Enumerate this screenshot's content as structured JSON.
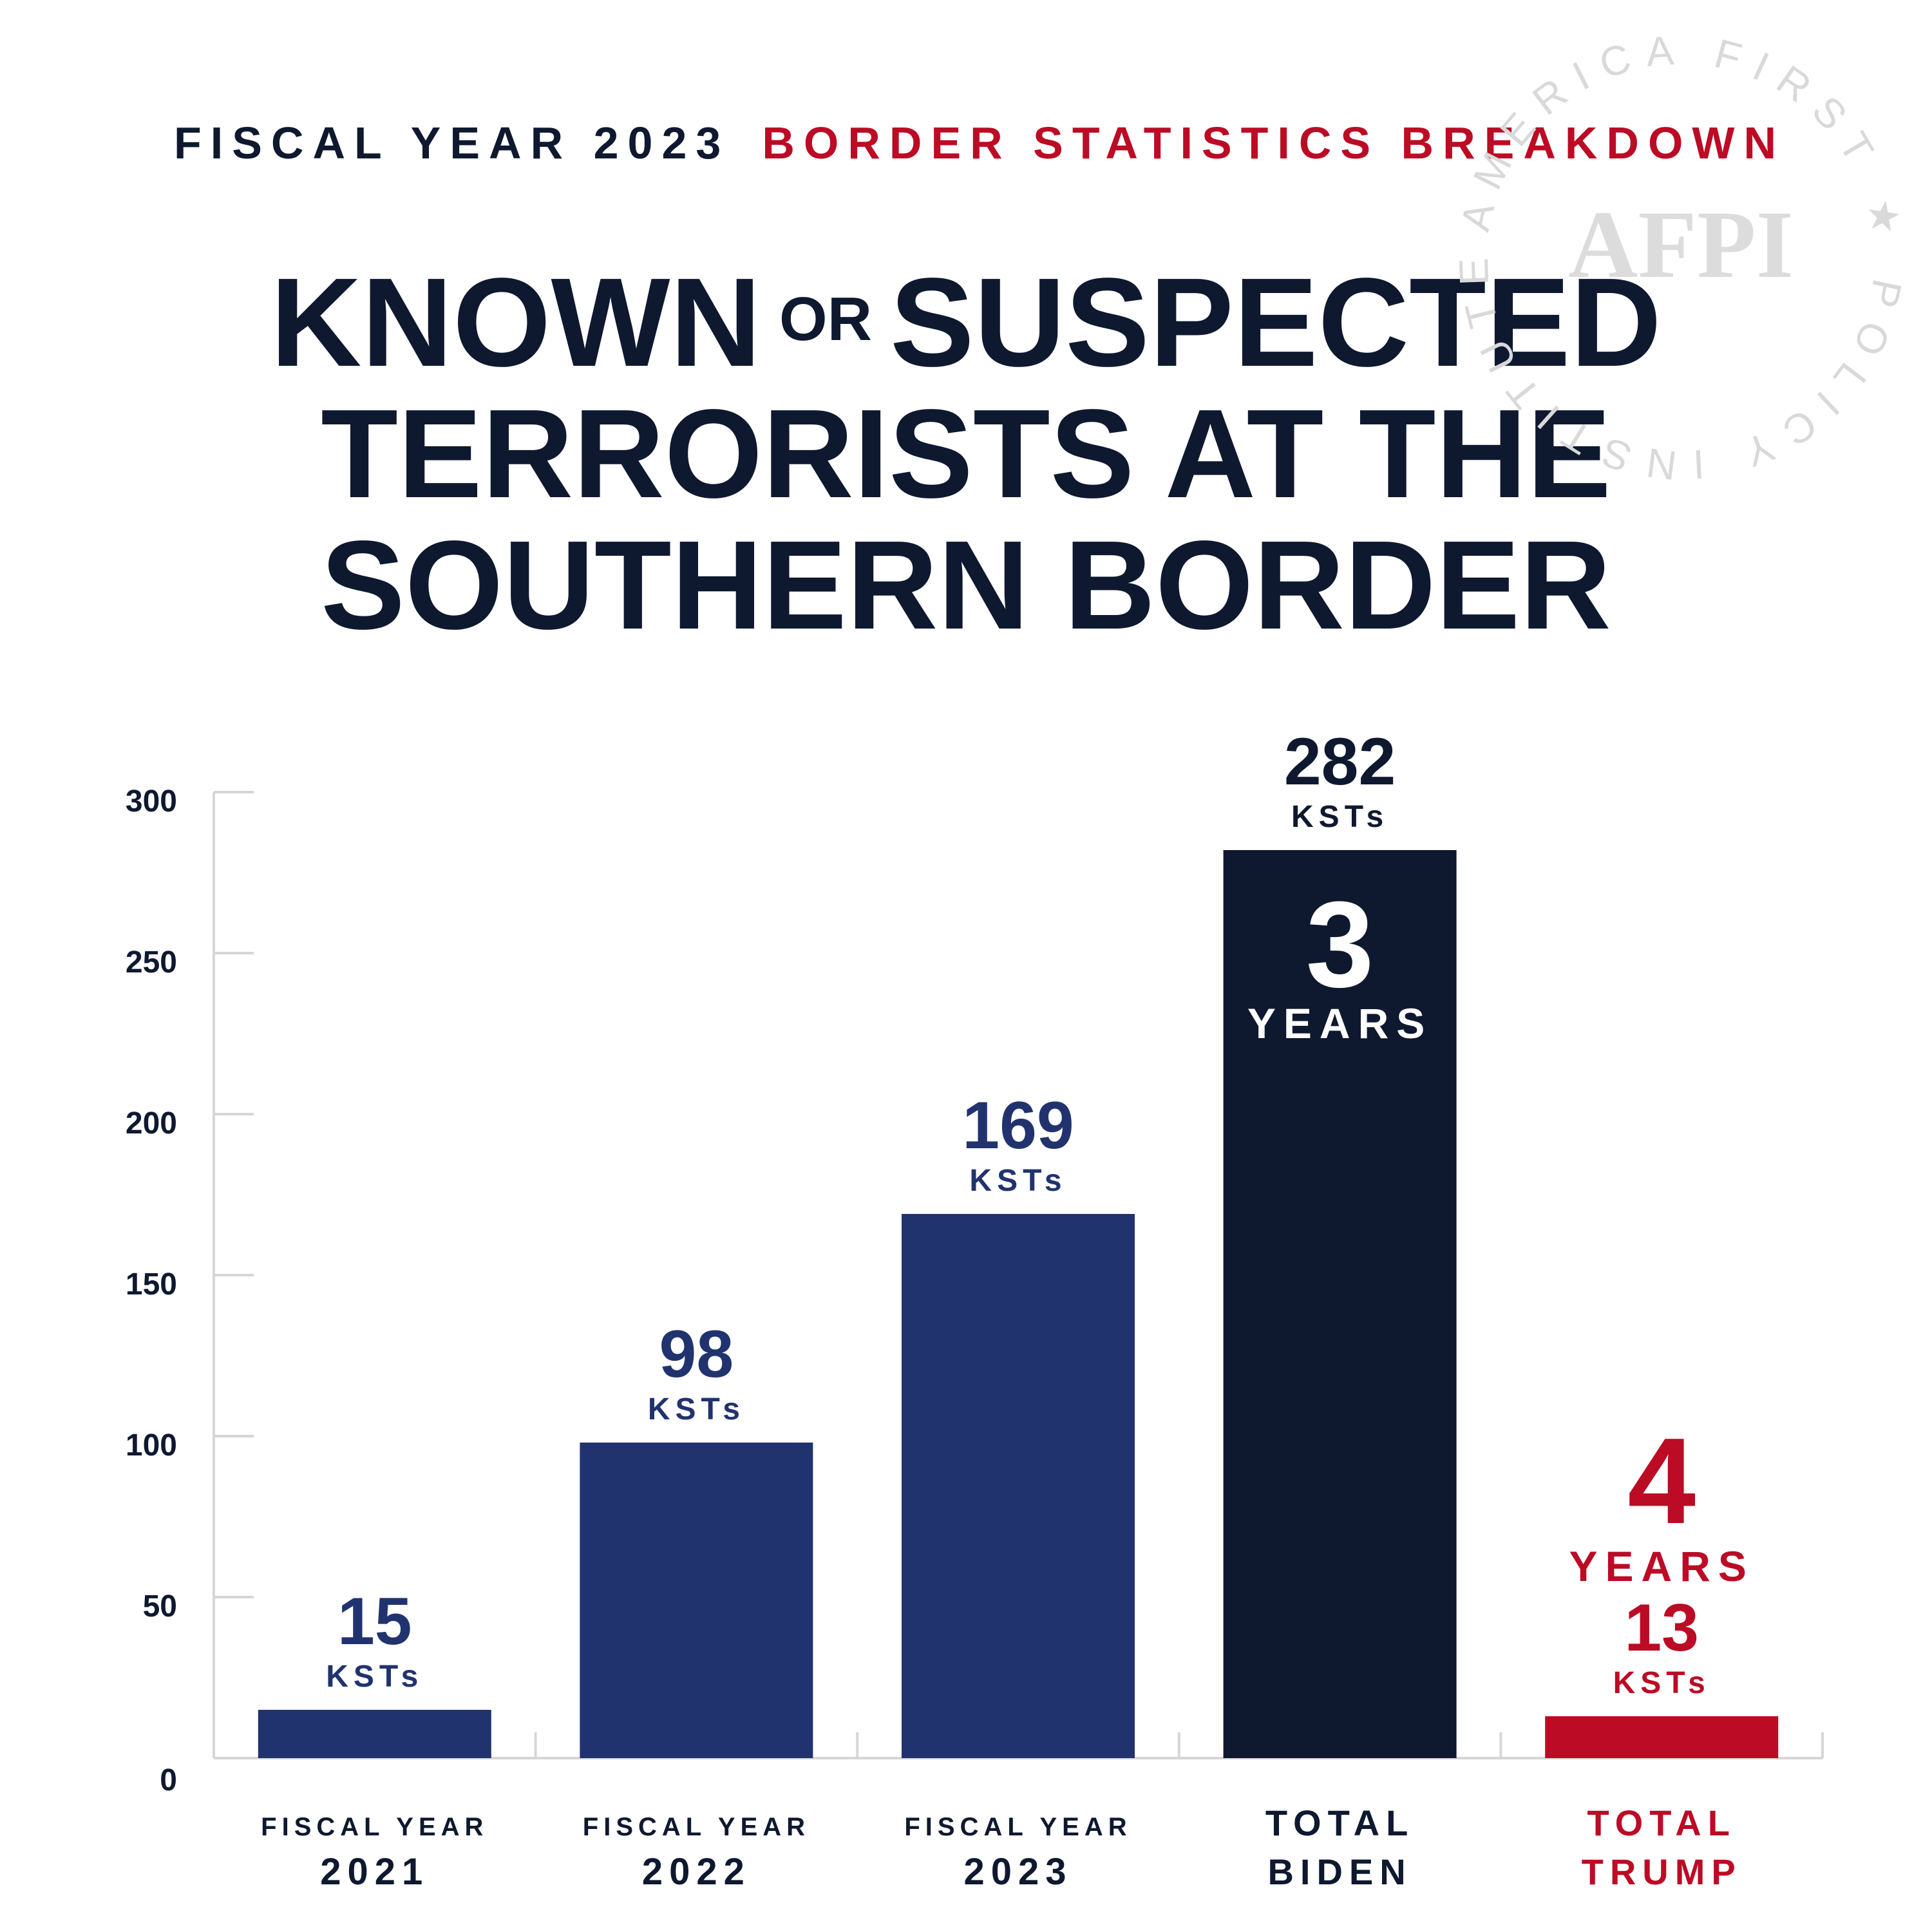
{
  "header": {
    "subtitle_dark": "FISCAL YEAR 2023",
    "subtitle_red": "BORDER STATISTICS BREAKDOWN",
    "title_part1": "KNOWN",
    "title_or": "OR",
    "title_part2": "SUSPECTED",
    "title_line2": "TERRORISTS AT THE",
    "title_line3": "SOUTHERN BORDER"
  },
  "watermark": {
    "arc_text": "AMERICA FIRST ★ POLICY INSTITUTE",
    "logo_text": "AFPI"
  },
  "colors": {
    "navy": "#0e1930",
    "blue": "#21336e",
    "red": "#bc0b25",
    "axis": "#d6d6d6"
  },
  "chart_data": {
    "type": "bar",
    "ylim": [
      0,
      300
    ],
    "yticks": [
      0,
      50,
      100,
      150,
      200,
      250,
      300
    ],
    "unit_label": "KSTs",
    "categories": [
      {
        "line1": "FISCAL YEAR",
        "line2": "2021"
      },
      {
        "line1": "FISCAL YEAR",
        "line2": "2022"
      },
      {
        "line1": "FISCAL YEAR",
        "line2": "2023"
      },
      {
        "line1": "TOTAL",
        "line2": "BIDEN"
      },
      {
        "line1": "TOTAL",
        "line2": "TRUMP"
      }
    ],
    "values": [
      15,
      98,
      169,
      282,
      13
    ],
    "value_labels": [
      "15",
      "98",
      "169",
      "282",
      "13"
    ],
    "bar_colors": [
      "#21336e",
      "#21336e",
      "#21336e",
      "#0e1930",
      "#bc0b25"
    ],
    "label_colors": [
      "#21336e",
      "#21336e",
      "#21336e",
      "#0e1930",
      "#bc0b25"
    ],
    "category_colors": [
      "#0e1930",
      "#0e1930",
      "#0e1930",
      "#0e1930",
      "#bc0b25"
    ],
    "annotations": [
      {
        "bar_index": 3,
        "number": "3",
        "text": "YEARS",
        "placement": "inside-top",
        "color": "#ffffff"
      },
      {
        "bar_index": 4,
        "number": "4",
        "text": "YEARS",
        "placement": "above-label",
        "color": "#bc0b25"
      }
    ]
  }
}
